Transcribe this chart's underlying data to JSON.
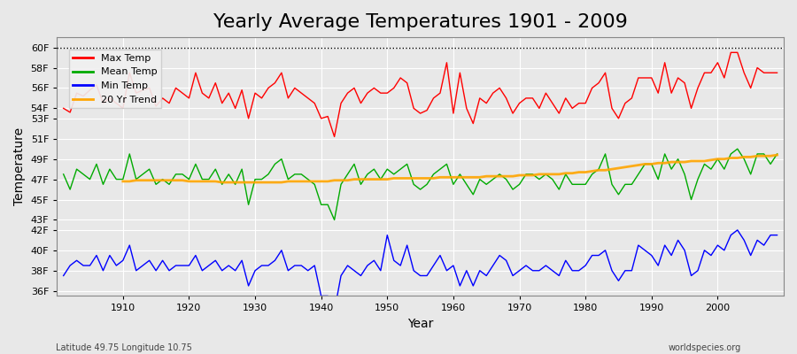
{
  "title": "Yearly Average Temperatures 1901 - 2009",
  "xlabel": "Year",
  "ylabel": "Temperature",
  "subtitle_left": "Latitude 49.75 Longitude 10.75",
  "subtitle_right": "worldspecies.org",
  "years": [
    1901,
    1902,
    1903,
    1904,
    1905,
    1906,
    1907,
    1908,
    1909,
    1910,
    1911,
    1912,
    1913,
    1914,
    1915,
    1916,
    1917,
    1918,
    1919,
    1920,
    1921,
    1922,
    1923,
    1924,
    1925,
    1926,
    1927,
    1928,
    1929,
    1930,
    1931,
    1932,
    1933,
    1934,
    1935,
    1936,
    1937,
    1938,
    1939,
    1940,
    1941,
    1942,
    1943,
    1944,
    1945,
    1946,
    1947,
    1948,
    1949,
    1950,
    1951,
    1952,
    1953,
    1954,
    1955,
    1956,
    1957,
    1958,
    1959,
    1960,
    1961,
    1962,
    1963,
    1964,
    1965,
    1966,
    1967,
    1968,
    1969,
    1970,
    1971,
    1972,
    1973,
    1974,
    1975,
    1976,
    1977,
    1978,
    1979,
    1980,
    1981,
    1982,
    1983,
    1984,
    1985,
    1986,
    1987,
    1988,
    1989,
    1990,
    1991,
    1992,
    1993,
    1994,
    1995,
    1996,
    1997,
    1998,
    1999,
    2000,
    2001,
    2002,
    2003,
    2004,
    2005,
    2006,
    2007,
    2008,
    2009
  ],
  "max_temp": [
    54.0,
    53.6,
    55.5,
    55.2,
    55.8,
    56.3,
    54.5,
    55.0,
    54.5,
    54.0,
    57.5,
    55.5,
    55.8,
    56.0,
    54.2,
    55.0,
    54.5,
    56.0,
    55.5,
    55.0,
    57.5,
    55.5,
    55.0,
    56.5,
    54.5,
    55.5,
    54.0,
    55.8,
    53.0,
    55.5,
    55.0,
    56.0,
    56.5,
    57.5,
    55.0,
    56.0,
    55.5,
    55.0,
    54.5,
    53.0,
    53.2,
    51.2,
    54.5,
    55.5,
    56.0,
    54.5,
    55.5,
    56.0,
    55.5,
    55.5,
    56.0,
    57.0,
    56.5,
    54.0,
    53.5,
    53.8,
    55.0,
    55.5,
    58.5,
    53.5,
    57.5,
    54.0,
    52.5,
    55.0,
    54.5,
    55.5,
    56.0,
    55.0,
    53.5,
    54.5,
    55.0,
    55.0,
    54.0,
    55.5,
    54.5,
    53.5,
    55.0,
    54.0,
    54.5,
    54.5,
    56.0,
    56.5,
    57.5,
    54.0,
    53.0,
    54.5,
    55.0,
    57.0,
    57.0,
    57.0,
    55.5,
    58.5,
    55.5,
    57.0,
    56.5,
    54.0,
    56.0,
    57.5,
    57.5,
    58.5,
    57.0,
    59.5,
    59.5,
    57.5,
    56.0,
    58.0,
    57.5,
    57.5,
    57.5
  ],
  "mean_temp": [
    47.5,
    46.0,
    48.0,
    47.5,
    47.0,
    48.5,
    46.5,
    48.0,
    47.0,
    47.0,
    49.5,
    47.0,
    47.5,
    48.0,
    46.5,
    47.0,
    46.5,
    47.5,
    47.5,
    47.0,
    48.5,
    47.0,
    47.0,
    48.0,
    46.5,
    47.5,
    46.5,
    48.0,
    44.5,
    47.0,
    47.0,
    47.5,
    48.5,
    49.0,
    47.0,
    47.5,
    47.5,
    47.0,
    46.5,
    44.5,
    44.5,
    43.0,
    46.5,
    47.5,
    48.5,
    46.5,
    47.5,
    48.0,
    47.0,
    48.0,
    47.5,
    48.0,
    48.5,
    46.5,
    46.0,
    46.5,
    47.5,
    48.0,
    48.5,
    46.5,
    47.5,
    46.5,
    45.5,
    47.0,
    46.5,
    47.0,
    47.5,
    47.0,
    46.0,
    46.5,
    47.5,
    47.5,
    47.0,
    47.5,
    47.0,
    46.0,
    47.5,
    46.5,
    46.5,
    46.5,
    47.5,
    48.0,
    49.5,
    46.5,
    45.5,
    46.5,
    46.5,
    47.5,
    48.5,
    48.5,
    47.0,
    49.5,
    48.0,
    49.0,
    47.5,
    45.0,
    47.0,
    48.5,
    48.0,
    49.0,
    48.0,
    49.5,
    50.0,
    49.0,
    47.5,
    49.5,
    49.5,
    48.5,
    49.5
  ],
  "min_temp": [
    37.5,
    38.5,
    39.0,
    38.5,
    38.5,
    39.5,
    38.0,
    39.5,
    38.5,
    39.0,
    40.5,
    38.0,
    38.5,
    39.0,
    38.0,
    39.0,
    38.0,
    38.5,
    38.5,
    38.5,
    39.5,
    38.0,
    38.5,
    39.0,
    38.0,
    38.5,
    38.0,
    39.0,
    36.5,
    38.0,
    38.5,
    38.5,
    39.0,
    40.0,
    38.0,
    38.5,
    38.5,
    38.0,
    38.5,
    35.5,
    35.5,
    34.0,
    37.5,
    38.5,
    38.0,
    37.5,
    38.5,
    39.0,
    38.0,
    41.5,
    39.0,
    38.5,
    40.5,
    38.0,
    37.5,
    37.5,
    38.5,
    39.5,
    38.0,
    38.5,
    36.5,
    38.0,
    36.5,
    38.0,
    37.5,
    38.5,
    39.5,
    39.0,
    37.5,
    38.0,
    38.5,
    38.0,
    38.0,
    38.5,
    38.0,
    37.5,
    39.0,
    38.0,
    38.0,
    38.5,
    39.5,
    39.5,
    40.0,
    38.0,
    37.0,
    38.0,
    38.0,
    40.5,
    40.0,
    39.5,
    38.5,
    40.5,
    39.5,
    41.0,
    40.0,
    37.5,
    38.0,
    40.0,
    39.5,
    40.5,
    40.0,
    41.5,
    42.0,
    41.0,
    39.5,
    41.0,
    40.5,
    41.5,
    41.5
  ],
  "trend_years": [
    1910,
    1911,
    1912,
    1913,
    1914,
    1915,
    1916,
    1917,
    1918,
    1919,
    1920,
    1921,
    1922,
    1923,
    1924,
    1925,
    1926,
    1927,
    1928,
    1929,
    1930,
    1931,
    1932,
    1933,
    1934,
    1935,
    1936,
    1937,
    1938,
    1939,
    1940,
    1941,
    1942,
    1943,
    1944,
    1945,
    1946,
    1947,
    1948,
    1949,
    1950,
    1951,
    1952,
    1953,
    1954,
    1955,
    1956,
    1957,
    1958,
    1959,
    1960,
    1961,
    1962,
    1963,
    1964,
    1965,
    1966,
    1967,
    1968,
    1969,
    1970,
    1971,
    1972,
    1973,
    1974,
    1975,
    1976,
    1977,
    1978,
    1979,
    1980,
    1981,
    1982,
    1983,
    1984,
    1985,
    1986,
    1987,
    1988,
    1989,
    1990,
    1991,
    1992,
    1993,
    1994,
    1995,
    1996,
    1997,
    1998,
    1999,
    2000,
    2001,
    2002,
    2003,
    2004,
    2005,
    2006,
    2007,
    2008,
    2009
  ],
  "trend_vals": [
    46.8,
    46.8,
    46.9,
    46.9,
    46.9,
    46.9,
    46.9,
    46.9,
    46.9,
    46.9,
    46.8,
    46.8,
    46.8,
    46.8,
    46.8,
    46.7,
    46.7,
    46.7,
    46.7,
    46.7,
    46.7,
    46.7,
    46.7,
    46.7,
    46.7,
    46.8,
    46.8,
    46.8,
    46.8,
    46.8,
    46.8,
    46.8,
    46.9,
    46.9,
    46.9,
    47.0,
    47.0,
    47.0,
    47.0,
    47.0,
    47.0,
    47.1,
    47.1,
    47.1,
    47.1,
    47.1,
    47.1,
    47.1,
    47.2,
    47.2,
    47.2,
    47.2,
    47.2,
    47.2,
    47.2,
    47.3,
    47.3,
    47.3,
    47.3,
    47.3,
    47.4,
    47.4,
    47.4,
    47.5,
    47.5,
    47.5,
    47.5,
    47.6,
    47.6,
    47.7,
    47.7,
    47.8,
    47.9,
    47.9,
    48.0,
    48.1,
    48.2,
    48.3,
    48.4,
    48.5,
    48.5,
    48.6,
    48.6,
    48.7,
    48.7,
    48.7,
    48.8,
    48.8,
    48.8,
    48.9,
    49.0,
    49.0,
    49.1,
    49.1,
    49.2,
    49.2,
    49.3,
    49.3,
    49.3,
    49.4
  ],
  "bg_color": "#e8e8e8",
  "plot_bg_color": "#e8e8e8",
  "max_color": "#ff0000",
  "mean_color": "#00aa00",
  "min_color": "#0000ff",
  "trend_color": "#ffa500",
  "grid_color": "#ffffff",
  "yticks": [
    36,
    38,
    40,
    42,
    43,
    45,
    47,
    49,
    51,
    53,
    54,
    56,
    58,
    60
  ],
  "ylim": [
    35.5,
    61.0
  ],
  "xlim": [
    1900,
    2010
  ],
  "xticks": [
    1910,
    1920,
    1930,
    1940,
    1950,
    1960,
    1970,
    1980,
    1990,
    2000
  ],
  "ytick_labels": [
    "36F",
    "38F",
    "40F",
    "42F",
    "43F",
    "45F",
    "47F",
    "49F",
    "51F",
    "53F",
    "54F",
    "56F",
    "58F",
    "60F"
  ],
  "hline_60": 60.0,
  "title_fontsize": 16,
  "legend_entries": [
    "Max Temp",
    "Mean Temp",
    "Min Temp",
    "20 Yr Trend"
  ]
}
